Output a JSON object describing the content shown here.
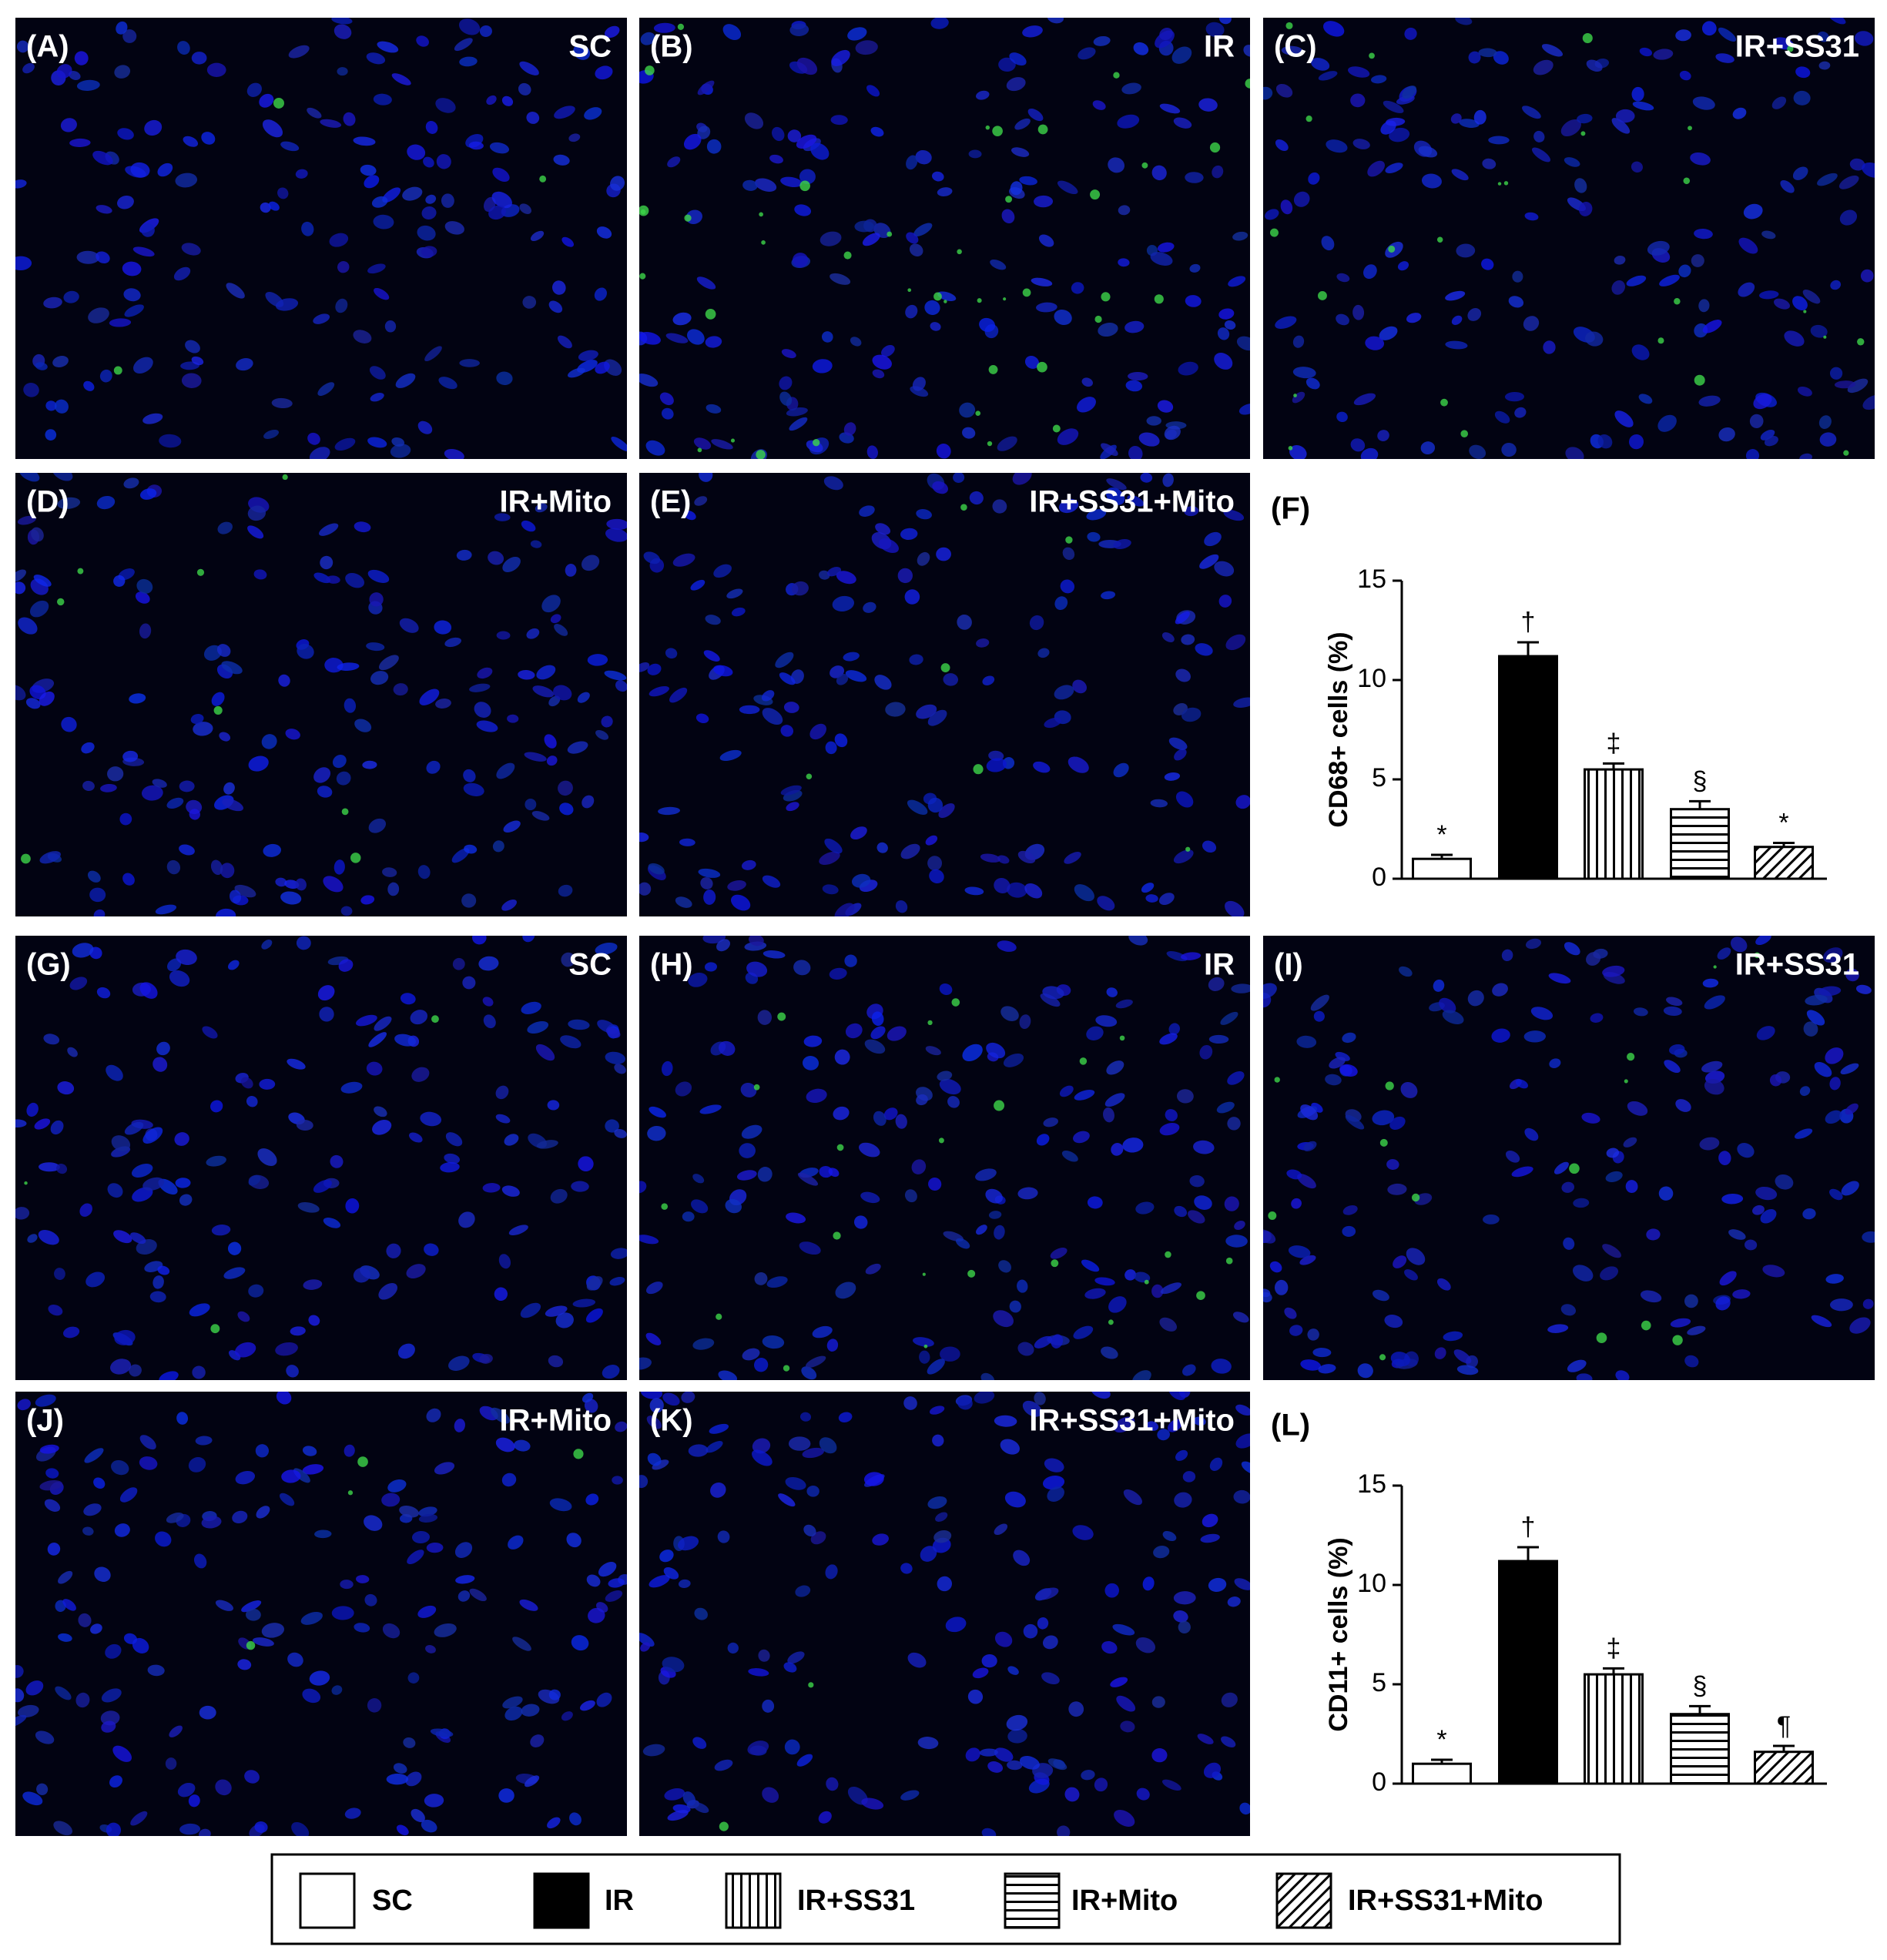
{
  "panels": [
    {
      "label": "(A)",
      "group": "SC"
    },
    {
      "label": "(B)",
      "group": "IR"
    },
    {
      "label": "(C)",
      "group": "IR+SS31"
    },
    {
      "label": "(D)",
      "group": "IR+Mito"
    },
    {
      "label": "(E)",
      "group": "IR+SS31+Mito"
    },
    {
      "label": "(G)",
      "group": "SC"
    },
    {
      "label": "(H)",
      "group": "IR"
    },
    {
      "label": "(I)",
      "group": "IR+SS31"
    },
    {
      "label": "(J)",
      "group": "IR+Mito"
    },
    {
      "label": "(K)",
      "group": "IR+SS31+Mito"
    }
  ],
  "chart_data": [
    {
      "type": "bar",
      "panel_label": "(F)",
      "ylabel": "CD68+ cells (%)",
      "categories": [
        null,
        null,
        null,
        null,
        null
      ],
      "values": [
        1.0,
        11.2,
        5.5,
        3.5,
        1.6
      ],
      "errors": [
        0.2,
        0.7,
        0.3,
        0.4,
        0.2
      ],
      "annotations": [
        "*",
        "†",
        "‡",
        "§",
        "*"
      ],
      "fills": [
        "white",
        "black",
        "vertical",
        "horizontal",
        "diagonal"
      ],
      "ylim": [
        0,
        15
      ],
      "yticks": [
        0,
        5,
        10,
        15
      ]
    },
    {
      "type": "bar",
      "panel_label": "(L)",
      "ylabel": "CD11+ cells (%)",
      "categories": [
        null,
        null,
        null,
        null,
        null
      ],
      "values": [
        1.0,
        11.2,
        5.5,
        3.5,
        1.6
      ],
      "errors": [
        0.2,
        0.7,
        0.3,
        0.4,
        0.3
      ],
      "annotations": [
        "*",
        "†",
        "‡",
        "§",
        "¶"
      ],
      "fills": [
        "white",
        "black",
        "vertical",
        "horizontal",
        "diagonal"
      ],
      "ylim": [
        0,
        15
      ],
      "yticks": [
        0,
        5,
        10,
        15
      ]
    }
  ],
  "legend": [
    {
      "name": "SC",
      "fill": "white"
    },
    {
      "name": "IR",
      "fill": "black"
    },
    {
      "name": "IR+SS31",
      "fill": "vertical"
    },
    {
      "name": "IR+Mito",
      "fill": "horizontal"
    },
    {
      "name": "IR+SS31+Mito",
      "fill": "diagonal"
    }
  ]
}
